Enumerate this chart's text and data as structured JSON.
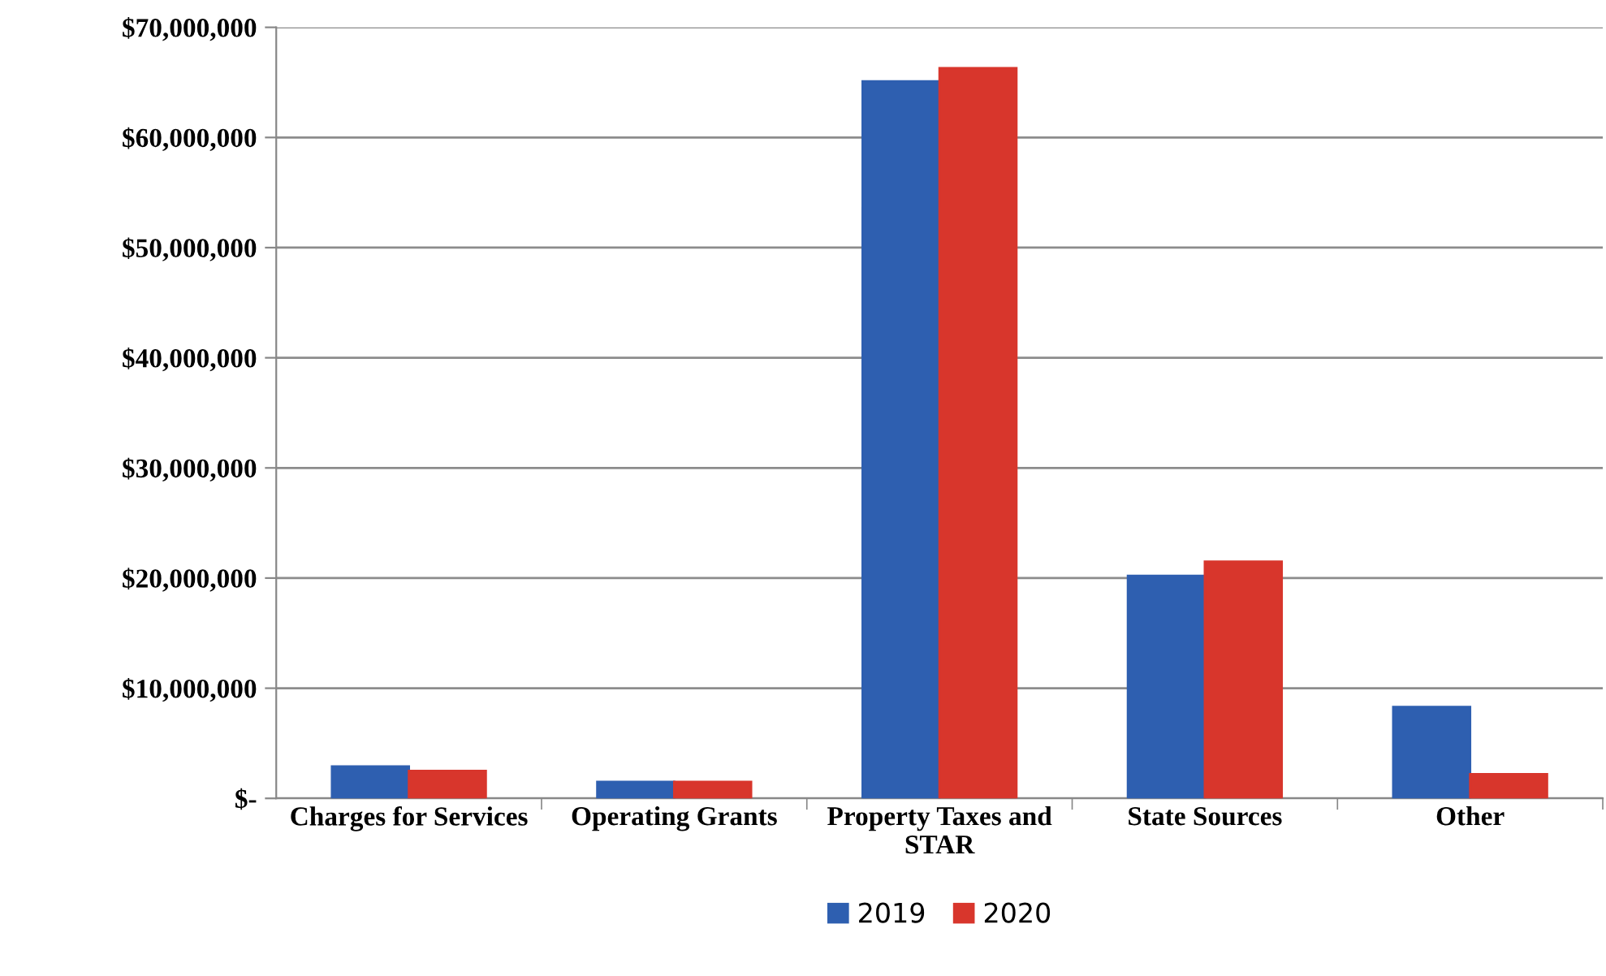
{
  "chart_data": {
    "type": "bar",
    "categories": [
      "Charges for Services",
      "Operating Grants",
      "Property Taxes and\nSTAR",
      "State Sources",
      "Other"
    ],
    "series": [
      {
        "name": "2019",
        "color": "#2e5fb0",
        "values": [
          2900000,
          1500000,
          65100000,
          20200000,
          8300000
        ]
      },
      {
        "name": "2020",
        "color": "#d8362c",
        "values": [
          2500000,
          1500000,
          66300000,
          21500000,
          2200000
        ]
      }
    ],
    "ylim": [
      0,
      70000000
    ],
    "yticks": [
      {
        "value": 0,
        "label": "$-"
      },
      {
        "value": 10000000,
        "label": "$10,000,000"
      },
      {
        "value": 20000000,
        "label": "$20,000,000"
      },
      {
        "value": 30000000,
        "label": "$30,000,000"
      },
      {
        "value": 40000000,
        "label": "$40,000,000"
      },
      {
        "value": 50000000,
        "label": "$50,000,000"
      },
      {
        "value": 60000000,
        "label": "$60,000,000"
      },
      {
        "value": 70000000,
        "label": "$70,000,000"
      }
    ],
    "grid": "y",
    "legend": "bottom"
  }
}
